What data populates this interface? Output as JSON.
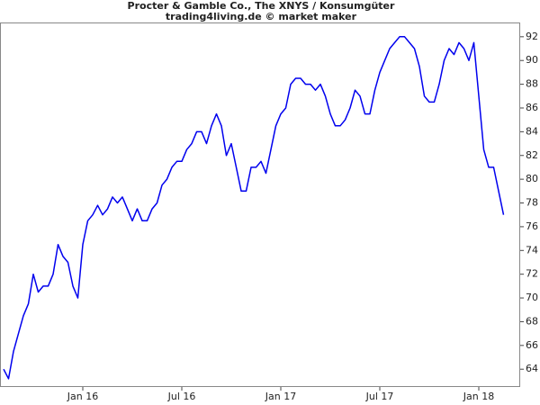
{
  "chart_data": {
    "type": "line",
    "title": "Procter & Gamble Co., The XNYS / Konsumgüter",
    "subtitle": "trading4living.de © market maker",
    "categories": [
      null,
      null,
      null,
      null,
      null,
      null,
      null,
      null,
      null,
      null,
      null,
      null,
      null,
      null,
      null,
      null,
      "Jan 16",
      null,
      null,
      null,
      null,
      null,
      null,
      null,
      null,
      null,
      null,
      null,
      null,
      null,
      null,
      null,
      null,
      null,
      null,
      null,
      "Jul 16",
      null,
      null,
      null,
      null,
      null,
      null,
      null,
      null,
      null,
      null,
      null,
      null,
      null,
      null,
      null,
      null,
      null,
      null,
      null,
      "Jan 17",
      null,
      null,
      null,
      null,
      null,
      null,
      null,
      null,
      null,
      null,
      null,
      null,
      null,
      null,
      null,
      null,
      null,
      null,
      null,
      "Jul 17",
      null,
      null,
      null,
      null,
      null,
      null,
      null,
      null,
      null,
      null,
      null,
      null,
      null,
      null,
      null,
      null,
      null,
      null,
      null,
      "Jan 18",
      null,
      null,
      null,
      null,
      null
    ],
    "series": [
      {
        "color": "#0000ee",
        "values": [
          64,
          63.2,
          65.5,
          67,
          68.5,
          69.5,
          72,
          70.5,
          71,
          71,
          72,
          74.5,
          73.5,
          73,
          71,
          70,
          74.5,
          76.5,
          77,
          77.8,
          77,
          77.5,
          78.5,
          78,
          78.5,
          77.5,
          76.5,
          77.5,
          76.5,
          76.5,
          77.5,
          78,
          79.5,
          80,
          81,
          81.5,
          81.5,
          82.5,
          83,
          84,
          84,
          83,
          84.5,
          85.5,
          84.5,
          82,
          83,
          81,
          79,
          79,
          81,
          81,
          81.5,
          80.5,
          82.5,
          84.5,
          85.5,
          86,
          88,
          88.5,
          88.5,
          88,
          88,
          87.5,
          88,
          87,
          85.5,
          84.5,
          84.5,
          85,
          86,
          87.5,
          87,
          85.5,
          85.5,
          87.5,
          89,
          90,
          91,
          91.5,
          92,
          92,
          91.5,
          91,
          89.5,
          87,
          86.5,
          86.5,
          88,
          90,
          91,
          90.5,
          91.5,
          91,
          90,
          91.5,
          87,
          82.5,
          81,
          81,
          79,
          77
        ]
      }
    ],
    "ylim": [
      62.5,
      93.2
    ],
    "yticks": [
      64,
      66,
      68,
      70,
      72,
      74,
      76,
      78,
      80,
      82,
      84,
      86,
      88,
      90,
      92
    ]
  }
}
